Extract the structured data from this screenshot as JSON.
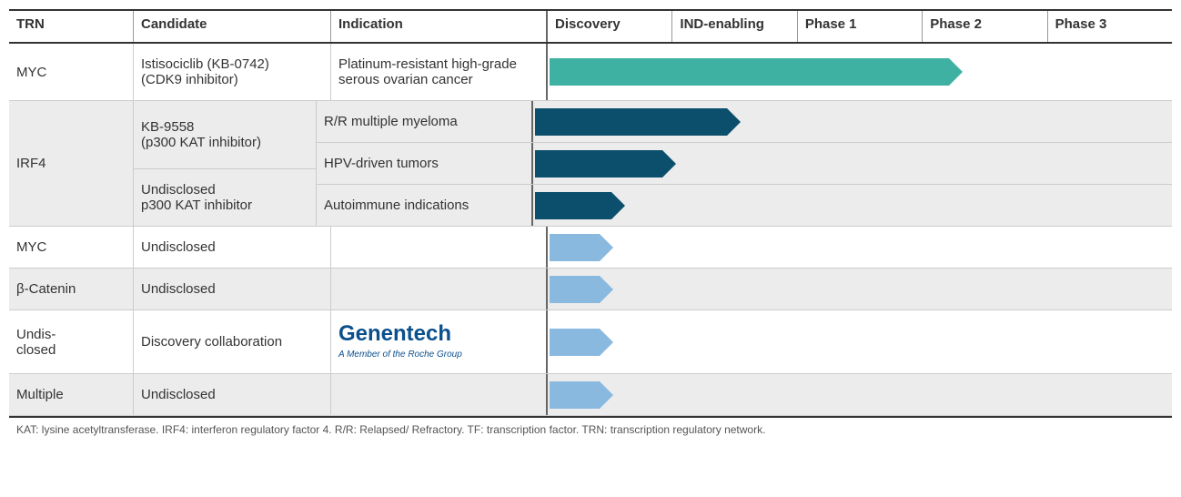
{
  "headers": {
    "trn": "TRN",
    "candidate": "Candidate",
    "indication": "Indication",
    "phases": [
      "Discovery",
      "IND-enabling",
      "Phase 1",
      "Phase 2",
      "Phase 3"
    ]
  },
  "colors": {
    "teal": "#3fb1a3",
    "navy": "#0b4f6c",
    "lightblue": "#8ab9e0",
    "row_alt_bg": "#ececec",
    "border": "#cccccc"
  },
  "arrow_tip_width_pct": 2.0,
  "rows": [
    {
      "trn": "MYC",
      "candidate": "Istisociclib (KB-0742)\n(CDK9 inhibitor)",
      "indication": "Platinum-resistant high-grade serous ovarian cancer",
      "progress_pct": 66,
      "color": "#3fb1a3",
      "alt": false
    },
    {
      "trn": "IRF4",
      "alt": true,
      "subrows": [
        {
          "candidate": "KB-9558\n(p300 KAT inhibitor)",
          "indications": [
            {
              "indication": "R/R multiple myeloma",
              "progress_pct": 32,
              "color": "#0b4f6c"
            },
            {
              "indication": "HPV-driven tumors",
              "progress_pct": 22,
              "color": "#0b4f6c"
            }
          ]
        },
        {
          "candidate": "Undisclosed\np300 KAT inhibitor",
          "indications": [
            {
              "indication": "Autoimmune indications",
              "progress_pct": 14,
              "color": "#0b4f6c"
            }
          ]
        }
      ]
    },
    {
      "trn": "MYC",
      "candidate": "Undisclosed",
      "indication": "",
      "progress_pct": 10,
      "color": "#8ab9e0",
      "alt": false
    },
    {
      "trn": "β-Catenin",
      "candidate": "Undisclosed",
      "indication": "",
      "progress_pct": 10,
      "color": "#8ab9e0",
      "alt": true
    },
    {
      "trn": "Undis-\nclosed",
      "candidate": "Discovery collaboration",
      "indication_partner": {
        "name": "Genentech",
        "sub": "A Member of the Roche Group"
      },
      "progress_pct": 10,
      "color": "#8ab9e0",
      "alt": false
    },
    {
      "trn": "Multiple",
      "candidate": "Undisclosed",
      "indication": "",
      "progress_pct": 10,
      "color": "#8ab9e0",
      "alt": true
    }
  ],
  "footnote": "KAT: lysine acetyltransferase. IRF4: interferon regulatory factor 4. R/R: Relapsed/ Refractory. TF: transcription factor. TRN: transcription regulatory network."
}
